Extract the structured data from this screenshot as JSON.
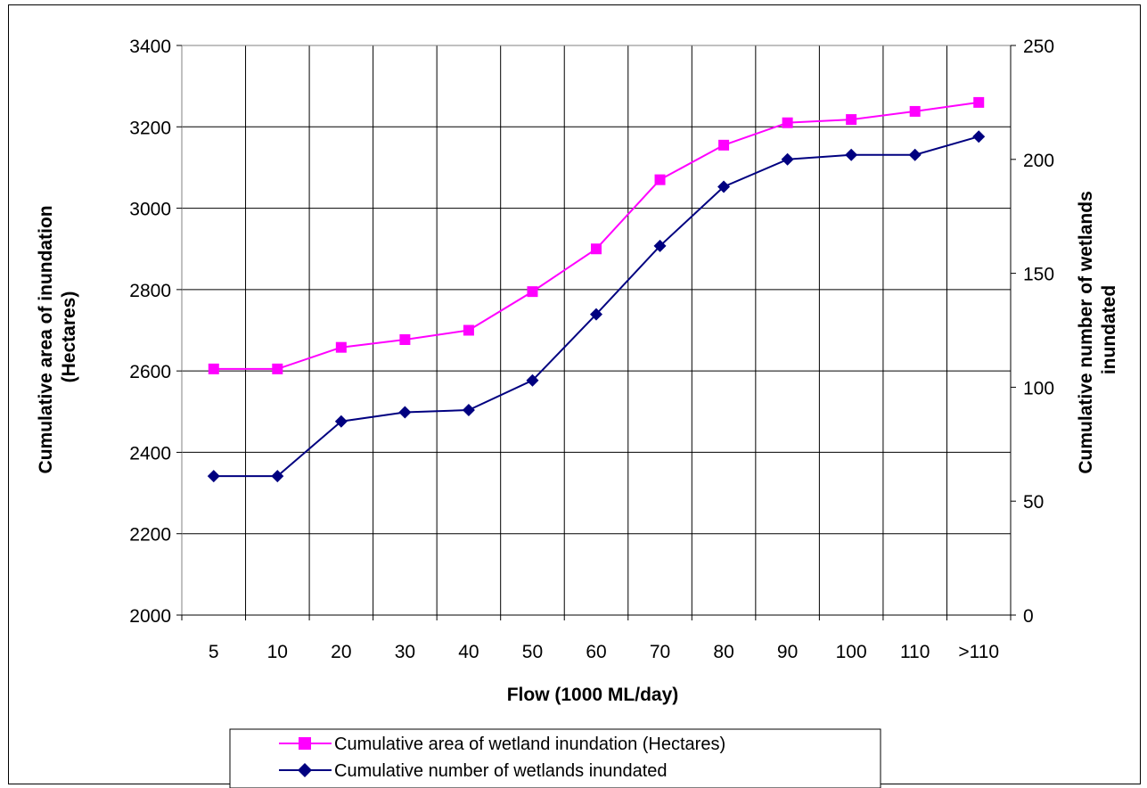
{
  "chart_data": {
    "type": "line",
    "title": "",
    "xlabel": "Flow (1000 ML/day)",
    "ylabel_left": [
      "Cumulative area of inundation",
      "(Hectares)"
    ],
    "ylabel_right": [
      "Cumulative number of wetlands",
      "inundated"
    ],
    "categories": [
      "5",
      "10",
      "20",
      "30",
      "40",
      "50",
      "60",
      "70",
      "80",
      "90",
      "100",
      "110",
      ">110"
    ],
    "ylim_left": [
      2000,
      3400
    ],
    "yticks_left": [
      2000,
      2200,
      2400,
      2600,
      2800,
      3000,
      3200,
      3400
    ],
    "ylim_right": [
      0,
      250
    ],
    "yticks_right": [
      0,
      50,
      100,
      150,
      200,
      250
    ],
    "grid": true,
    "legend_position": "bottom",
    "series": [
      {
        "name": "Cumulative area of wetland inundation (Hectares)",
        "axis": "left",
        "color": "#ff00ff",
        "marker": "square",
        "values": [
          2605,
          2605,
          2658,
          2677,
          2700,
          2795,
          2900,
          3070,
          3155,
          3210,
          3218,
          3238,
          3260
        ]
      },
      {
        "name": "Cumulative number of wetlands inundated",
        "axis": "right",
        "color": "#000080",
        "marker": "diamond",
        "values": [
          61,
          61,
          85,
          89,
          90,
          103,
          132,
          162,
          188,
          200,
          202,
          202,
          210
        ]
      }
    ]
  }
}
